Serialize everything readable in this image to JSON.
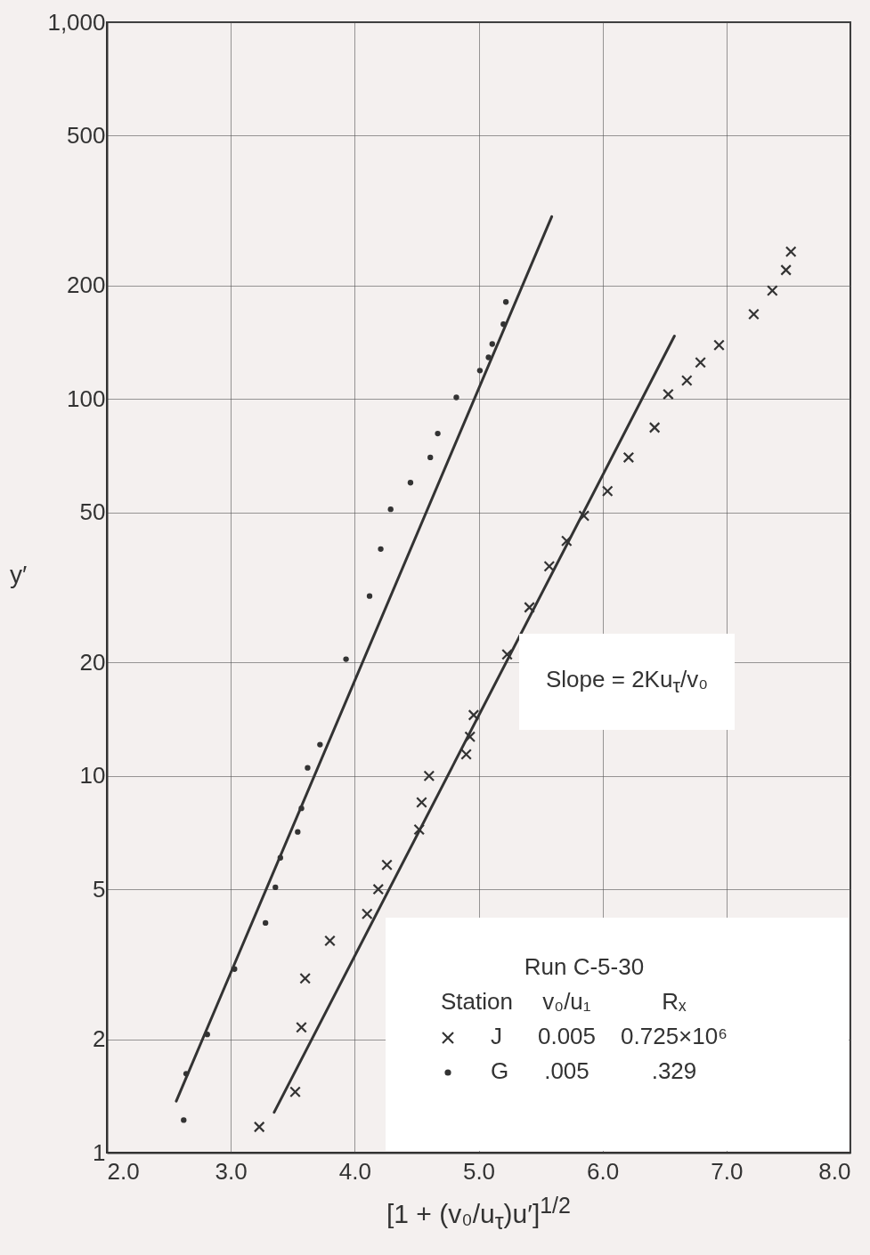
{
  "chart_data": {
    "type": "scatter",
    "xlabel": "[1 + (v₀/u$_{τ}$)u′]$^{1/2}$",
    "ylabel": "y′",
    "log": "y",
    "grid": true,
    "legend": "bottom right",
    "legend_title": "Run  C-5-30",
    "xlim": [
      2,
      8
    ],
    "ylim": [
      1,
      1000
    ],
    "xticks": [
      {
        "value": 2,
        "label": "2.0"
      },
      {
        "value": 3,
        "label": "3.0"
      },
      {
        "value": 4,
        "label": "4.0"
      },
      {
        "value": 5,
        "label": "5.0"
      },
      {
        "value": 6,
        "label": "6.0"
      },
      {
        "value": 7,
        "label": "7.0"
      },
      {
        "value": 8,
        "label": "8.0"
      }
    ],
    "yticks": [
      1,
      2,
      5,
      10,
      20,
      50,
      100,
      200,
      500,
      {
        "value": 1000,
        "label": "1,000"
      }
    ],
    "annotations": [
      "Slope = 2Ku$_{τ}$/v₀",
      "Station",
      "v₀/u₁",
      "Rₓ",
      "0.005",
      "0.725×10⁶",
      ".005",
      ".329"
    ],
    "series": [
      {
        "name": "J",
        "marker": "cross",
        "color": "#333333",
        "x": [
          3.23,
          3.52,
          3.57,
          3.6,
          3.8,
          4.1,
          4.19,
          4.26,
          4.52,
          4.54,
          4.6,
          4.9,
          4.93,
          4.96,
          5.23,
          5.41,
          5.57,
          5.71,
          5.85,
          6.04,
          6.21,
          6.42,
          6.53,
          6.68,
          6.79,
          6.94,
          7.22,
          7.37,
          7.48,
          7.52
        ],
        "values": [
          1.17,
          1.45,
          2.15,
          2.9,
          3.65,
          4.3,
          5,
          5.8,
          7.2,
          8.5,
          10,
          11.4,
          12.7,
          14.5,
          21,
          28,
          36,
          42,
          49,
          57,
          70,
          84,
          103,
          112,
          125,
          139,
          168,
          194,
          220,
          246
        ]
      },
      {
        "name": "G",
        "marker": "circle",
        "color": "#333333",
        "x": [
          2.62,
          2.64,
          2.81,
          3.03,
          3.28,
          3.36,
          3.4,
          3.54,
          3.57,
          3.62,
          3.72,
          3.93,
          4.12,
          4.21,
          4.29,
          4.45,
          4.61,
          4.67,
          4.82,
          5.01,
          5.08,
          5.11,
          5.2,
          5.22
        ],
        "values": [
          1.22,
          1.62,
          2.06,
          3.07,
          4.07,
          5.06,
          6.06,
          7.1,
          8.2,
          10.5,
          12.1,
          20.4,
          30,
          40,
          51,
          60,
          70,
          81,
          101,
          119,
          129,
          140,
          158,
          181
        ]
      },
      {
        "type": "line",
        "marker": "none",
        "line_style": "solid",
        "color": "#333333",
        "x": [
          2.56,
          5.59
        ],
        "values": [
          1.37,
          305
        ]
      },
      {
        "type": "line",
        "marker": "none",
        "line_style": "solid",
        "color": "#333333",
        "x": [
          3.35,
          6.58
        ],
        "values": [
          1.28,
          147
        ]
      }
    ]
  }
}
